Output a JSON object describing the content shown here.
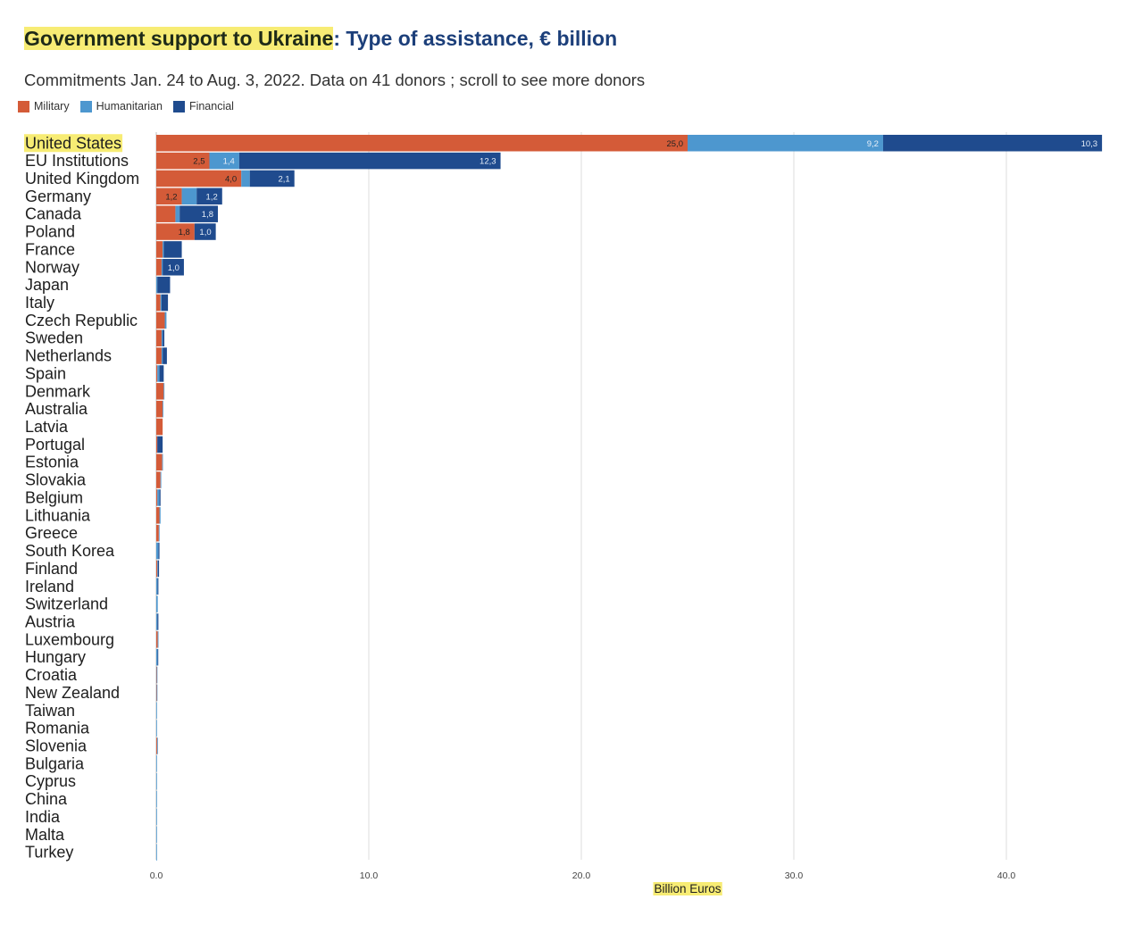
{
  "header": {
    "title_highlight": "Government support to Ukraine",
    "title_rest": ": Type of assistance, € billion",
    "subtitle": "Commitments Jan. 24 to Aug. 3, 2022. Data on 41 donors ; scroll to see more donors"
  },
  "legend": [
    {
      "label": "Military",
      "color": "#d45b38"
    },
    {
      "label": "Humanitarian",
      "color": "#4d97cf"
    },
    {
      "label": "Financial",
      "color": "#1f4b8e"
    }
  ],
  "chart_data": {
    "type": "bar",
    "orientation": "horizontal",
    "stacked": true,
    "xlabel": "Billion Euros",
    "xlim": [
      0,
      45
    ],
    "xticks": [
      "0.0",
      "10.0",
      "20.0",
      "30.0",
      "40.0"
    ],
    "xtick_values": [
      0,
      10,
      20,
      30,
      40
    ],
    "grid": true,
    "legend_position": "top-left",
    "highlight_category": "United States",
    "categories": [
      "United States",
      "EU Institutions",
      "United Kingdom",
      "Germany",
      "Canada",
      "Poland",
      "France",
      "Norway",
      "Japan",
      "Italy",
      "Czech Republic",
      "Sweden",
      "Netherlands",
      "Spain",
      "Denmark",
      "Australia",
      "Latvia",
      "Portugal",
      "Estonia",
      "Slovakia",
      "Belgium",
      "Lithuania",
      "Greece",
      "South Korea",
      "Finland",
      "Ireland",
      "Switzerland",
      "Austria",
      "Luxembourg",
      "Hungary",
      "Croatia",
      "New Zealand",
      "Taiwan",
      "Romania",
      "Slovenia",
      "Bulgaria",
      "Cyprus",
      "China",
      "India",
      "Malta",
      "Turkey"
    ],
    "series": [
      {
        "name": "Military",
        "color": "#d45b38",
        "values": [
          25.0,
          2.5,
          4.0,
          1.2,
          0.9,
          1.8,
          0.3,
          0.25,
          0.0,
          0.2,
          0.4,
          0.25,
          0.25,
          0.05,
          0.35,
          0.3,
          0.3,
          0.05,
          0.28,
          0.2,
          0.05,
          0.15,
          0.12,
          0.0,
          0.05,
          0.0,
          0.0,
          0.0,
          0.07,
          0.0,
          0.02,
          0.02,
          0.0,
          0.0,
          0.04,
          0.0,
          0.0,
          0.0,
          0.0,
          0.0,
          0.0
        ]
      },
      {
        "name": "Humanitarian",
        "color": "#4d97cf",
        "values": [
          9.2,
          1.4,
          0.4,
          0.7,
          0.2,
          0.0,
          0.05,
          0.05,
          0.05,
          0.05,
          0.08,
          0.05,
          0.05,
          0.1,
          0.03,
          0.02,
          0.0,
          0.0,
          0.02,
          0.02,
          0.1,
          0.05,
          0.01,
          0.1,
          0.03,
          0.06,
          0.07,
          0.05,
          0.01,
          0.06,
          0.01,
          0.01,
          0.02,
          0.02,
          0.01,
          0.01,
          0.01,
          0.01,
          0.01,
          0.01,
          0.01
        ]
      },
      {
        "name": "Financial",
        "color": "#1f4b8e",
        "values": [
          10.3,
          12.3,
          2.1,
          1.2,
          1.8,
          1.0,
          0.85,
          1.0,
          0.6,
          0.3,
          0.0,
          0.08,
          0.2,
          0.2,
          0.0,
          0.0,
          0.0,
          0.25,
          0.0,
          0.0,
          0.05,
          0.0,
          0.0,
          0.05,
          0.05,
          0.04,
          0.0,
          0.05,
          0.0,
          0.02,
          0.0,
          0.0,
          0.0,
          0.0,
          0.0,
          0.0,
          0.0,
          0.0,
          0.0,
          0.0,
          0.0
        ]
      }
    ],
    "data_labels": {
      "Military": [
        "25,0",
        "2,5",
        "4,0",
        "1,2",
        "",
        "1,8"
      ],
      "Humanitarian": [
        "9,2",
        "1,4",
        "",
        "",
        "",
        "",
        ""
      ],
      "Financial": [
        "10,3",
        "12,3",
        "2,1",
        "1,2",
        "1,8",
        "1,0",
        "",
        "1,0"
      ]
    }
  }
}
